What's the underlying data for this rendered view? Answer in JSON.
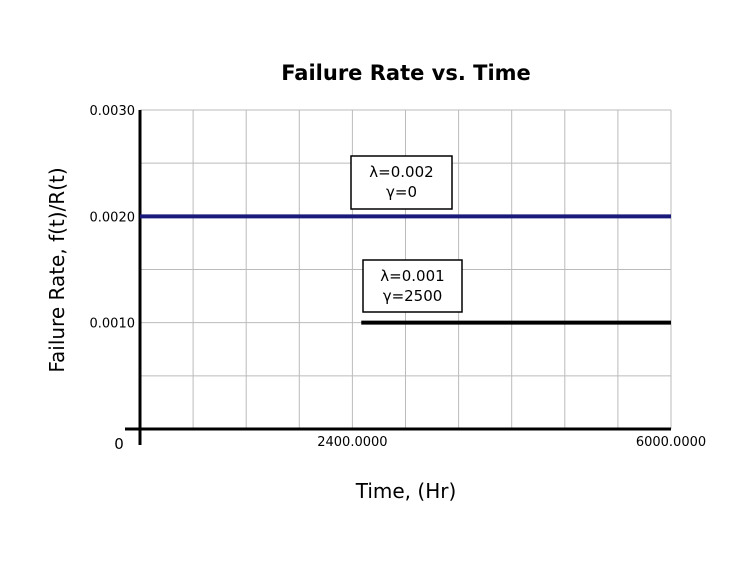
{
  "chart_data": {
    "type": "line",
    "title": "Failure Rate vs. Time",
    "xlabel": "Time, (Hr)",
    "ylabel": "Failure Rate, f(t)/R(t)",
    "xlim": [
      0,
      6000
    ],
    "ylim": [
      0,
      0.003
    ],
    "x_tick_labels": [
      "0",
      "2400.0000",
      "6000.0000"
    ],
    "x_tick_values": [
      0,
      2400,
      6000
    ],
    "y_tick_labels": [
      "0.0010",
      "0.0020",
      "0.0030"
    ],
    "y_tick_values": [
      0.001,
      0.002,
      0.003
    ],
    "grid": true,
    "colors": {
      "series1": "#1a1a7a",
      "series2": "#000000",
      "grid": "#bbbbbb"
    },
    "series": [
      {
        "x": [
          0,
          6000
        ],
        "values": [
          0.002,
          0.002
        ],
        "annotation": [
          "λ=0.002",
          "γ=0"
        ]
      },
      {
        "x": [
          2500,
          6000
        ],
        "values": [
          0.001,
          0.001
        ],
        "annotation": [
          "λ=0.001",
          "γ=2500"
        ]
      }
    ]
  }
}
